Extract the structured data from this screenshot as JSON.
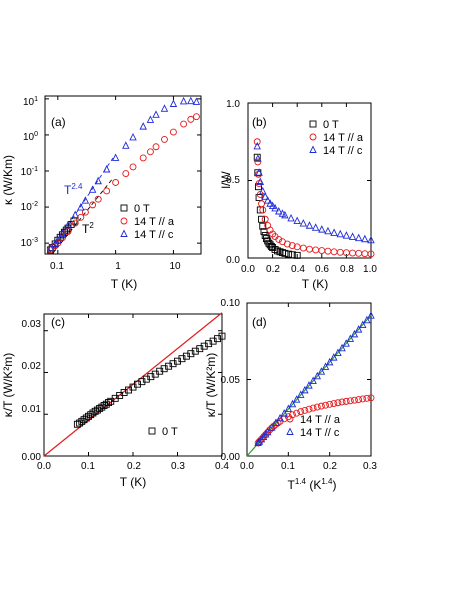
{
  "colors": {
    "black": "#000000",
    "red": "#e41a1c",
    "blue": "#1f2bd6",
    "green": "#2ca02c",
    "axis": "#000000"
  },
  "markers": {
    "square": "open-square",
    "circle": "open-circle",
    "triangle": "open-triangle"
  },
  "chart_data": [
    {
      "panel": "(a)",
      "type": "scatter",
      "xlabel": "T (K)",
      "ylabel": "κ (W/Km)",
      "xscale": "log",
      "yscale": "log",
      "xlim": [
        0.06,
        30
      ],
      "ylim": [
        0.0005,
        12
      ],
      "xticks": [
        {
          "v": 0.1,
          "t": "0.1"
        },
        {
          "v": 1,
          "t": "1"
        },
        {
          "v": 10,
          "t": "10"
        }
      ],
      "yticks": [
        {
          "v": 0.001,
          "b": "10",
          "e": "-3"
        },
        {
          "v": 0.01,
          "b": "10",
          "e": "-2"
        },
        {
          "v": 0.1,
          "b": "10",
          "e": "-1"
        },
        {
          "v": 1,
          "b": "10",
          "e": "0"
        },
        {
          "v": 10,
          "b": "10",
          "e": "1"
        }
      ],
      "legend": [
        "0 T",
        "14 T // a",
        "14 T // c"
      ],
      "legend_position": "bottom-right",
      "annotations": [
        {
          "b": "T",
          "e": "2.4",
          "color": "blue"
        },
        {
          "b": "T",
          "e": "2",
          "color": "black"
        }
      ],
      "series": [
        {
          "name": "0 T",
          "marker": "square",
          "color": "black",
          "x": [
            0.075,
            0.08,
            0.09,
            0.1,
            0.11,
            0.12,
            0.13,
            0.14,
            0.15,
            0.17,
            0.19
          ],
          "y": [
            0.00065,
            0.00075,
            0.00095,
            0.0012,
            0.00145,
            0.0017,
            0.002,
            0.0023,
            0.0026,
            0.0033,
            0.0041
          ]
        },
        {
          "name": "14 T // a",
          "marker": "circle",
          "color": "red",
          "x": [
            0.075,
            0.09,
            0.1,
            0.12,
            0.15,
            0.2,
            0.25,
            0.3,
            0.4,
            0.5,
            0.7,
            1.0,
            1.5,
            2,
            3,
            4,
            5,
            7,
            10,
            15,
            20,
            25
          ],
          "y": [
            0.00065,
            0.00085,
            0.001,
            0.0014,
            0.0021,
            0.0036,
            0.0052,
            0.0072,
            0.0115,
            0.0165,
            0.028,
            0.048,
            0.085,
            0.13,
            0.23,
            0.34,
            0.47,
            0.75,
            1.2,
            2.0,
            2.7,
            3.2
          ]
        },
        {
          "name": "14 T // c",
          "marker": "triangle",
          "color": "blue",
          "x": [
            0.075,
            0.09,
            0.1,
            0.12,
            0.15,
            0.2,
            0.25,
            0.3,
            0.4,
            0.5,
            0.7,
            1.0,
            1.5,
            2,
            3,
            4,
            5,
            7,
            10,
            15,
            20,
            25
          ],
          "y": [
            0.0007,
            0.00095,
            0.0012,
            0.0018,
            0.0031,
            0.006,
            0.0097,
            0.015,
            0.03,
            0.052,
            0.11,
            0.23,
            0.5,
            0.85,
            1.7,
            2.6,
            3.6,
            5.3,
            7.2,
            8.5,
            8.6,
            8.2
          ]
        }
      ]
    },
    {
      "panel": "(b)",
      "type": "scatter",
      "xlabel": "T (K)",
      "ylabel": "l/W",
      "xlim": [
        0,
        1.0
      ],
      "ylim": [
        0,
        1.0
      ],
      "xticks": [
        {
          "v": 0,
          "t": "0.0"
        },
        {
          "v": 0.2,
          "t": "0.2"
        },
        {
          "v": 0.4,
          "t": "0.4"
        },
        {
          "v": 0.6,
          "t": "0.6"
        },
        {
          "v": 0.8,
          "t": "0.8"
        },
        {
          "v": 1.0,
          "t": "1.0"
        }
      ],
      "yticks": [
        {
          "v": 0,
          "t": "0.0"
        },
        {
          "v": 0.5,
          "t": "0.5"
        },
        {
          "v": 1.0,
          "t": "1.0"
        }
      ],
      "legend": [
        "0 T",
        "14 T // a",
        "14 T // c"
      ],
      "legend_position": "top-right",
      "series": [
        {
          "name": "0 T",
          "marker": "square",
          "color": "black",
          "x": [
            0.075,
            0.08,
            0.085,
            0.09,
            0.1,
            0.11,
            0.12,
            0.13,
            0.14,
            0.15,
            0.16,
            0.17,
            0.18,
            0.19,
            0.2,
            0.22,
            0.24,
            0.26,
            0.28,
            0.3,
            0.33,
            0.36,
            0.4
          ],
          "y": [
            0.65,
            0.55,
            0.46,
            0.39,
            0.31,
            0.25,
            0.205,
            0.17,
            0.145,
            0.125,
            0.11,
            0.095,
            0.085,
            0.075,
            0.068,
            0.055,
            0.046,
            0.04,
            0.035,
            0.03,
            0.025,
            0.021,
            0.017
          ]
        },
        {
          "name": "14 T // a",
          "marker": "circle",
          "color": "red",
          "x": [
            0.075,
            0.08,
            0.085,
            0.09,
            0.1,
            0.11,
            0.12,
            0.14,
            0.16,
            0.18,
            0.2,
            0.22,
            0.25,
            0.28,
            0.32,
            0.36,
            0.4,
            0.45,
            0.5,
            0.55,
            0.6,
            0.65,
            0.7,
            0.75,
            0.8,
            0.85,
            0.9,
            0.95,
            1.0
          ],
          "y": [
            0.75,
            0.62,
            0.54,
            0.48,
            0.41,
            0.35,
            0.31,
            0.25,
            0.21,
            0.18,
            0.155,
            0.138,
            0.12,
            0.105,
            0.09,
            0.08,
            0.072,
            0.064,
            0.057,
            0.052,
            0.048,
            0.044,
            0.04,
            0.037,
            0.034,
            0.032,
            0.03,
            0.028,
            0.026
          ]
        },
        {
          "name": "14 T // c",
          "marker": "triangle",
          "color": "blue",
          "x": [
            0.075,
            0.08,
            0.09,
            0.1,
            0.12,
            0.14,
            0.16,
            0.18,
            0.2,
            0.22,
            0.25,
            0.28,
            0.3,
            0.35,
            0.4,
            0.45,
            0.5,
            0.55,
            0.6,
            0.65,
            0.7,
            0.75,
            0.8,
            0.85,
            0.9,
            0.95,
            1.0
          ],
          "y": [
            0.72,
            0.64,
            0.55,
            0.49,
            0.43,
            0.395,
            0.37,
            0.35,
            0.335,
            0.32,
            0.3,
            0.285,
            0.275,
            0.255,
            0.238,
            0.222,
            0.208,
            0.195,
            0.183,
            0.172,
            0.162,
            0.153,
            0.144,
            0.136,
            0.128,
            0.121,
            0.114
          ]
        }
      ]
    },
    {
      "panel": "(c)",
      "type": "scatter",
      "xlabel": "T (K)",
      "ylabel": "κ/T (W/K²m)",
      "xlim": [
        0,
        0.4
      ],
      "ylim": [
        0,
        0.034
      ],
      "xticks": [
        {
          "v": 0,
          "t": "0.0"
        },
        {
          "v": 0.1,
          "t": "0.1"
        },
        {
          "v": 0.2,
          "t": "0.2"
        },
        {
          "v": 0.3,
          "t": "0.3"
        },
        {
          "v": 0.4,
          "t": "0.4"
        }
      ],
      "yticks": [
        {
          "v": 0,
          "t": "0.00"
        },
        {
          "v": 0.01,
          "t": "0.01"
        },
        {
          "v": 0.02,
          "t": "0.02"
        },
        {
          "v": 0.03,
          "t": "0.03"
        }
      ],
      "legend": [
        "0 T"
      ],
      "legend_position": "bottom-right",
      "fit_line": {
        "color": "red",
        "x": [
          0,
          0.4
        ],
        "y": [
          0,
          0.0343
        ]
      },
      "series": [
        {
          "name": "0 T",
          "marker": "square",
          "color": "black",
          "x": [
            0.075,
            0.08,
            0.085,
            0.09,
            0.095,
            0.1,
            0.105,
            0.11,
            0.115,
            0.12,
            0.125,
            0.13,
            0.135,
            0.14,
            0.145,
            0.15,
            0.16,
            0.17,
            0.18,
            0.19,
            0.2,
            0.21,
            0.22,
            0.23,
            0.24,
            0.25,
            0.26,
            0.27,
            0.28,
            0.29,
            0.3,
            0.31,
            0.32,
            0.33,
            0.34,
            0.35,
            0.36,
            0.37,
            0.38,
            0.39,
            0.4
          ],
          "y": [
            0.0076,
            0.0079,
            0.0083,
            0.0087,
            0.0091,
            0.0095,
            0.0099,
            0.0103,
            0.0107,
            0.011,
            0.0114,
            0.0117,
            0.0121,
            0.0124,
            0.0128,
            0.0131,
            0.0138,
            0.0145,
            0.0152,
            0.0158,
            0.0165,
            0.0172,
            0.0178,
            0.0184,
            0.019,
            0.0196,
            0.0203,
            0.0209,
            0.0215,
            0.0221,
            0.0227,
            0.0233,
            0.0239,
            0.0245,
            0.0251,
            0.0257,
            0.0263,
            0.0269,
            0.0275,
            0.0281,
            0.0287
          ]
        }
      ]
    },
    {
      "panel": "(d)",
      "type": "scatter",
      "xlabel": "T^1.4 (K^1.4)",
      "ylabel": "κ/T (W/K²m)",
      "xlim": [
        0,
        0.3
      ],
      "ylim": [
        0,
        0.1
      ],
      "xticks": [
        {
          "v": 0,
          "t": "0.0"
        },
        {
          "v": 0.1,
          "t": "0.1"
        },
        {
          "v": 0.2,
          "t": "0.2"
        },
        {
          "v": 0.3,
          "t": "0.3"
        }
      ],
      "yticks": [
        {
          "v": 0,
          "t": "0.00"
        },
        {
          "v": 0.05,
          "t": "0.05"
        },
        {
          "v": 0.1,
          "t": "0.10"
        }
      ],
      "legend": [
        "14 T // a",
        "14 T // c"
      ],
      "legend_position": "bottom-right",
      "fit_line": {
        "color": "green",
        "x": [
          0,
          0.3
        ],
        "y": [
          0,
          0.092
        ]
      },
      "series": [
        {
          "name": "14 T // a",
          "marker": "circle",
          "color": "red",
          "x": [
            0.027,
            0.03,
            0.035,
            0.04,
            0.045,
            0.05,
            0.055,
            0.06,
            0.065,
            0.07,
            0.075,
            0.08,
            0.09,
            0.1,
            0.11,
            0.12,
            0.13,
            0.14,
            0.15,
            0.16,
            0.17,
            0.18,
            0.19,
            0.2,
            0.21,
            0.22,
            0.23,
            0.24,
            0.25,
            0.26,
            0.27,
            0.28,
            0.29,
            0.3
          ],
          "y": [
            0.0085,
            0.0095,
            0.011,
            0.0125,
            0.014,
            0.0155,
            0.017,
            0.0183,
            0.0195,
            0.0207,
            0.0217,
            0.0227,
            0.0243,
            0.0257,
            0.0269,
            0.028,
            0.029,
            0.0298,
            0.0306,
            0.0313,
            0.032,
            0.0326,
            0.0332,
            0.0338,
            0.0343,
            0.0348,
            0.0353,
            0.0357,
            0.0361,
            0.0365,
            0.0369,
            0.0373,
            0.0377,
            0.038
          ]
        },
        {
          "name": "14 T // c",
          "marker": "triangle",
          "color": "blue",
          "x": [
            0.027,
            0.03,
            0.035,
            0.04,
            0.045,
            0.05,
            0.06,
            0.07,
            0.08,
            0.09,
            0.1,
            0.11,
            0.12,
            0.13,
            0.14,
            0.15,
            0.16,
            0.17,
            0.18,
            0.19,
            0.2,
            0.21,
            0.22,
            0.23,
            0.24,
            0.25,
            0.26,
            0.27,
            0.28,
            0.29,
            0.3
          ],
          "y": [
            0.0085,
            0.0093,
            0.0108,
            0.0124,
            0.014,
            0.0155,
            0.0185,
            0.0216,
            0.0246,
            0.0277,
            0.0307,
            0.0338,
            0.0368,
            0.0399,
            0.0429,
            0.046,
            0.049,
            0.0521,
            0.0551,
            0.0582,
            0.0612,
            0.0643,
            0.0673,
            0.0704,
            0.0734,
            0.0765,
            0.0795,
            0.0826,
            0.0856,
            0.0887,
            0.0917
          ]
        }
      ]
    }
  ]
}
